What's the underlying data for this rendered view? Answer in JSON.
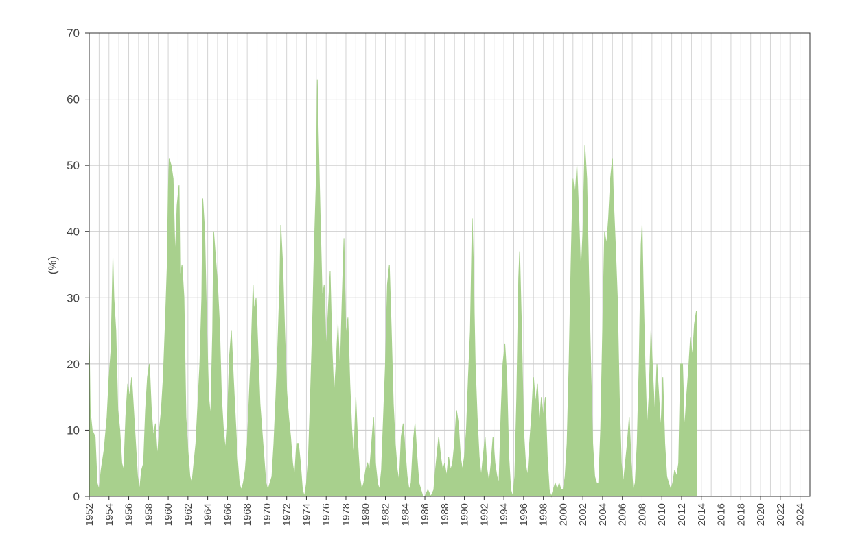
{
  "chart_data": {
    "type": "area",
    "title": "",
    "xlabel": "",
    "ylabel": "(%)",
    "xlim": [
      1952,
      2025
    ],
    "ylim": [
      0,
      70
    ],
    "y_ticks": [
      "0",
      "10",
      "20",
      "30",
      "40",
      "50",
      "60",
      "70"
    ],
    "x_ticks": [
      "1952",
      "1954",
      "1956",
      "1958",
      "1960",
      "1962",
      "1964",
      "1966",
      "1968",
      "1970",
      "1972",
      "1974",
      "1976",
      "1978",
      "1980",
      "1982",
      "1984",
      "1986",
      "1988",
      "1990",
      "1992",
      "1994",
      "1996",
      "1998",
      "2000",
      "2002",
      "2004",
      "2006",
      "2008",
      "2010",
      "2012",
      "2014",
      "2016",
      "2018",
      "2020",
      "2022",
      "2024"
    ],
    "grid": true,
    "fill_color": "#a8d08d",
    "series": [
      {
        "values": [
          [
            1952.0,
            24
          ],
          [
            1952.1,
            13
          ],
          [
            1952.3,
            10
          ],
          [
            1952.6,
            9
          ],
          [
            1952.8,
            2
          ],
          [
            1953.0,
            1
          ],
          [
            1953.2,
            4
          ],
          [
            1953.5,
            7
          ],
          [
            1953.8,
            12
          ],
          [
            1954.0,
            18
          ],
          [
            1954.2,
            22
          ],
          [
            1954.4,
            36
          ],
          [
            1954.5,
            30
          ],
          [
            1954.7,
            25
          ],
          [
            1954.9,
            13
          ],
          [
            1955.1,
            10
          ],
          [
            1955.3,
            5
          ],
          [
            1955.5,
            4
          ],
          [
            1955.7,
            12
          ],
          [
            1955.9,
            17
          ],
          [
            1956.1,
            15
          ],
          [
            1956.3,
            18
          ],
          [
            1956.5,
            13
          ],
          [
            1956.7,
            8
          ],
          [
            1956.9,
            3
          ],
          [
            1957.1,
            1
          ],
          [
            1957.3,
            4
          ],
          [
            1957.5,
            5
          ],
          [
            1957.7,
            13
          ],
          [
            1957.9,
            18
          ],
          [
            1958.1,
            20
          ],
          [
            1958.3,
            13
          ],
          [
            1958.5,
            9
          ],
          [
            1958.7,
            11
          ],
          [
            1958.9,
            6
          ],
          [
            1959.1,
            10
          ],
          [
            1959.3,
            13
          ],
          [
            1959.5,
            18
          ],
          [
            1959.7,
            26
          ],
          [
            1959.9,
            35
          ],
          [
            1960.0,
            46
          ],
          [
            1960.1,
            51
          ],
          [
            1960.3,
            50
          ],
          [
            1960.5,
            48
          ],
          [
            1960.7,
            36
          ],
          [
            1960.9,
            44
          ],
          [
            1961.1,
            47
          ],
          [
            1961.2,
            33
          ],
          [
            1961.4,
            35
          ],
          [
            1961.6,
            30
          ],
          [
            1961.8,
            12
          ],
          [
            1962.0,
            7
          ],
          [
            1962.2,
            3
          ],
          [
            1962.4,
            2
          ],
          [
            1962.6,
            5
          ],
          [
            1962.8,
            8
          ],
          [
            1963.0,
            14
          ],
          [
            1963.2,
            20
          ],
          [
            1963.4,
            30
          ],
          [
            1963.5,
            45
          ],
          [
            1963.7,
            40
          ],
          [
            1963.9,
            26
          ],
          [
            1964.1,
            15
          ],
          [
            1964.3,
            12
          ],
          [
            1964.5,
            25
          ],
          [
            1964.6,
            40
          ],
          [
            1964.8,
            36
          ],
          [
            1965.0,
            32
          ],
          [
            1965.2,
            26
          ],
          [
            1965.4,
            15
          ],
          [
            1965.6,
            10
          ],
          [
            1965.8,
            7
          ],
          [
            1966.0,
            12
          ],
          [
            1966.2,
            21
          ],
          [
            1966.4,
            25
          ],
          [
            1966.6,
            18
          ],
          [
            1966.8,
            12
          ],
          [
            1967.0,
            6
          ],
          [
            1967.2,
            2
          ],
          [
            1967.4,
            1
          ],
          [
            1967.6,
            2
          ],
          [
            1967.8,
            4
          ],
          [
            1968.0,
            8
          ],
          [
            1968.2,
            15
          ],
          [
            1968.4,
            22
          ],
          [
            1968.6,
            32
          ],
          [
            1968.7,
            28
          ],
          [
            1968.9,
            30
          ],
          [
            1969.1,
            22
          ],
          [
            1969.3,
            14
          ],
          [
            1969.5,
            10
          ],
          [
            1969.7,
            6
          ],
          [
            1969.9,
            2
          ],
          [
            1970.1,
            1
          ],
          [
            1970.3,
            2
          ],
          [
            1970.5,
            3
          ],
          [
            1970.7,
            8
          ],
          [
            1970.9,
            15
          ],
          [
            1971.1,
            23
          ],
          [
            1971.3,
            32
          ],
          [
            1971.4,
            41
          ],
          [
            1971.6,
            35
          ],
          [
            1971.8,
            25
          ],
          [
            1972.0,
            16
          ],
          [
            1972.2,
            12
          ],
          [
            1972.4,
            9
          ],
          [
            1972.6,
            5
          ],
          [
            1972.8,
            3
          ],
          [
            1973.0,
            8
          ],
          [
            1973.2,
            8
          ],
          [
            1973.4,
            5
          ],
          [
            1973.6,
            1
          ],
          [
            1973.8,
            0
          ],
          [
            1974.0,
            2
          ],
          [
            1974.2,
            6
          ],
          [
            1974.4,
            15
          ],
          [
            1974.6,
            25
          ],
          [
            1974.8,
            38
          ],
          [
            1975.0,
            48
          ],
          [
            1975.1,
            63
          ],
          [
            1975.2,
            55
          ],
          [
            1975.4,
            42
          ],
          [
            1975.6,
            30
          ],
          [
            1975.8,
            32
          ],
          [
            1976.0,
            22
          ],
          [
            1976.2,
            28
          ],
          [
            1976.4,
            34
          ],
          [
            1976.6,
            22
          ],
          [
            1976.8,
            15
          ],
          [
            1977.0,
            20
          ],
          [
            1977.2,
            26
          ],
          [
            1977.4,
            18
          ],
          [
            1977.6,
            29
          ],
          [
            1977.8,
            39
          ],
          [
            1978.0,
            24
          ],
          [
            1978.2,
            27
          ],
          [
            1978.4,
            17
          ],
          [
            1978.6,
            10
          ],
          [
            1978.8,
            6
          ],
          [
            1979.0,
            15
          ],
          [
            1979.2,
            8
          ],
          [
            1979.4,
            3
          ],
          [
            1979.6,
            1
          ],
          [
            1979.8,
            2
          ],
          [
            1980.0,
            4
          ],
          [
            1980.2,
            5
          ],
          [
            1980.4,
            4
          ],
          [
            1980.6,
            8
          ],
          [
            1980.8,
            12
          ],
          [
            1981.0,
            5
          ],
          [
            1981.2,
            2
          ],
          [
            1981.4,
            1
          ],
          [
            1981.6,
            4
          ],
          [
            1981.8,
            12
          ],
          [
            1982.0,
            20
          ],
          [
            1982.2,
            32
          ],
          [
            1982.4,
            35
          ],
          [
            1982.6,
            25
          ],
          [
            1982.8,
            14
          ],
          [
            1983.0,
            8
          ],
          [
            1983.2,
            4
          ],
          [
            1983.4,
            2
          ],
          [
            1983.6,
            9
          ],
          [
            1983.8,
            11
          ],
          [
            1984.0,
            7
          ],
          [
            1984.2,
            3
          ],
          [
            1984.4,
            1
          ],
          [
            1984.6,
            2
          ],
          [
            1984.8,
            8
          ],
          [
            1985.0,
            11
          ],
          [
            1985.2,
            6
          ],
          [
            1985.4,
            2
          ],
          [
            1985.6,
            1
          ],
          [
            1985.8,
            0
          ],
          [
            1986.0,
            0
          ],
          [
            1986.3,
            1
          ],
          [
            1986.6,
            0
          ],
          [
            1986.9,
            1
          ],
          [
            1987.0,
            3
          ],
          [
            1987.2,
            6
          ],
          [
            1987.4,
            9
          ],
          [
            1987.6,
            6
          ],
          [
            1987.8,
            4
          ],
          [
            1988.0,
            5
          ],
          [
            1988.2,
            3
          ],
          [
            1988.4,
            6
          ],
          [
            1988.6,
            4
          ],
          [
            1988.8,
            5
          ],
          [
            1989.0,
            8
          ],
          [
            1989.2,
            13
          ],
          [
            1989.4,
            11
          ],
          [
            1989.6,
            6
          ],
          [
            1989.8,
            4
          ],
          [
            1990.0,
            6
          ],
          [
            1990.2,
            10
          ],
          [
            1990.4,
            18
          ],
          [
            1990.6,
            25
          ],
          [
            1990.8,
            42
          ],
          [
            1990.9,
            36
          ],
          [
            1991.1,
            20
          ],
          [
            1991.3,
            12
          ],
          [
            1991.5,
            6
          ],
          [
            1991.7,
            3
          ],
          [
            1991.9,
            6
          ],
          [
            1992.1,
            9
          ],
          [
            1992.3,
            4
          ],
          [
            1992.5,
            2
          ],
          [
            1992.7,
            5
          ],
          [
            1992.9,
            9
          ],
          [
            1993.1,
            5
          ],
          [
            1993.3,
            3
          ],
          [
            1993.5,
            2
          ],
          [
            1993.7,
            12
          ],
          [
            1993.9,
            20
          ],
          [
            1994.1,
            23
          ],
          [
            1994.3,
            18
          ],
          [
            1994.5,
            6
          ],
          [
            1994.7,
            1
          ],
          [
            1994.9,
            0
          ],
          [
            1995.1,
            3
          ],
          [
            1995.3,
            15
          ],
          [
            1995.5,
            33
          ],
          [
            1995.6,
            37
          ],
          [
            1995.8,
            25
          ],
          [
            1996.0,
            10
          ],
          [
            1996.2,
            5
          ],
          [
            1996.4,
            3
          ],
          [
            1996.6,
            8
          ],
          [
            1996.8,
            12
          ],
          [
            1997.0,
            18
          ],
          [
            1997.2,
            14
          ],
          [
            1997.4,
            17
          ],
          [
            1997.6,
            11
          ],
          [
            1997.8,
            15
          ],
          [
            1998.0,
            12
          ],
          [
            1998.2,
            15
          ],
          [
            1998.4,
            6
          ],
          [
            1998.6,
            1
          ],
          [
            1998.8,
            0
          ],
          [
            1999.0,
            1
          ],
          [
            1999.2,
            2
          ],
          [
            1999.4,
            1
          ],
          [
            1999.6,
            2
          ],
          [
            1999.8,
            1
          ],
          [
            2000.0,
            1
          ],
          [
            2000.2,
            3
          ],
          [
            2000.4,
            8
          ],
          [
            2000.6,
            20
          ],
          [
            2000.8,
            35
          ],
          [
            2001.0,
            48
          ],
          [
            2001.2,
            45
          ],
          [
            2001.4,
            50
          ],
          [
            2001.6,
            42
          ],
          [
            2001.8,
            33
          ],
          [
            2002.0,
            40
          ],
          [
            2002.2,
            53
          ],
          [
            2002.4,
            48
          ],
          [
            2002.6,
            33
          ],
          [
            2002.8,
            20
          ],
          [
            2003.0,
            8
          ],
          [
            2003.2,
            3
          ],
          [
            2003.4,
            2
          ],
          [
            2003.6,
            2
          ],
          [
            2003.8,
            10
          ],
          [
            2004.0,
            25
          ],
          [
            2004.2,
            40
          ],
          [
            2004.4,
            38
          ],
          [
            2004.6,
            42
          ],
          [
            2004.8,
            48
          ],
          [
            2005.0,
            51
          ],
          [
            2005.1,
            45
          ],
          [
            2005.3,
            38
          ],
          [
            2005.5,
            30
          ],
          [
            2005.7,
            15
          ],
          [
            2005.9,
            5
          ],
          [
            2006.1,
            2
          ],
          [
            2006.3,
            5
          ],
          [
            2006.5,
            8
          ],
          [
            2006.7,
            12
          ],
          [
            2006.9,
            5
          ],
          [
            2007.1,
            1
          ],
          [
            2007.3,
            2
          ],
          [
            2007.5,
            8
          ],
          [
            2007.7,
            20
          ],
          [
            2007.9,
            38
          ],
          [
            2008.0,
            41
          ],
          [
            2008.1,
            33
          ],
          [
            2008.3,
            20
          ],
          [
            2008.5,
            10
          ],
          [
            2008.7,
            15
          ],
          [
            2008.9,
            25
          ],
          [
            2009.1,
            18
          ],
          [
            2009.3,
            12
          ],
          [
            2009.5,
            20
          ],
          [
            2009.7,
            15
          ],
          [
            2009.9,
            10
          ],
          [
            2010.1,
            18
          ],
          [
            2010.3,
            8
          ],
          [
            2010.5,
            3
          ],
          [
            2010.7,
            2
          ],
          [
            2010.9,
            1
          ],
          [
            2011.1,
            2
          ],
          [
            2011.3,
            4
          ],
          [
            2011.5,
            3
          ],
          [
            2011.7,
            5
          ],
          [
            2011.9,
            20
          ],
          [
            2012.1,
            20
          ],
          [
            2012.3,
            10
          ],
          [
            2012.5,
            15
          ],
          [
            2012.7,
            19
          ],
          [
            2012.9,
            24
          ],
          [
            2013.1,
            21
          ],
          [
            2013.3,
            26
          ],
          [
            2013.5,
            28
          ]
        ],
        "note": ""
      }
    ]
  }
}
